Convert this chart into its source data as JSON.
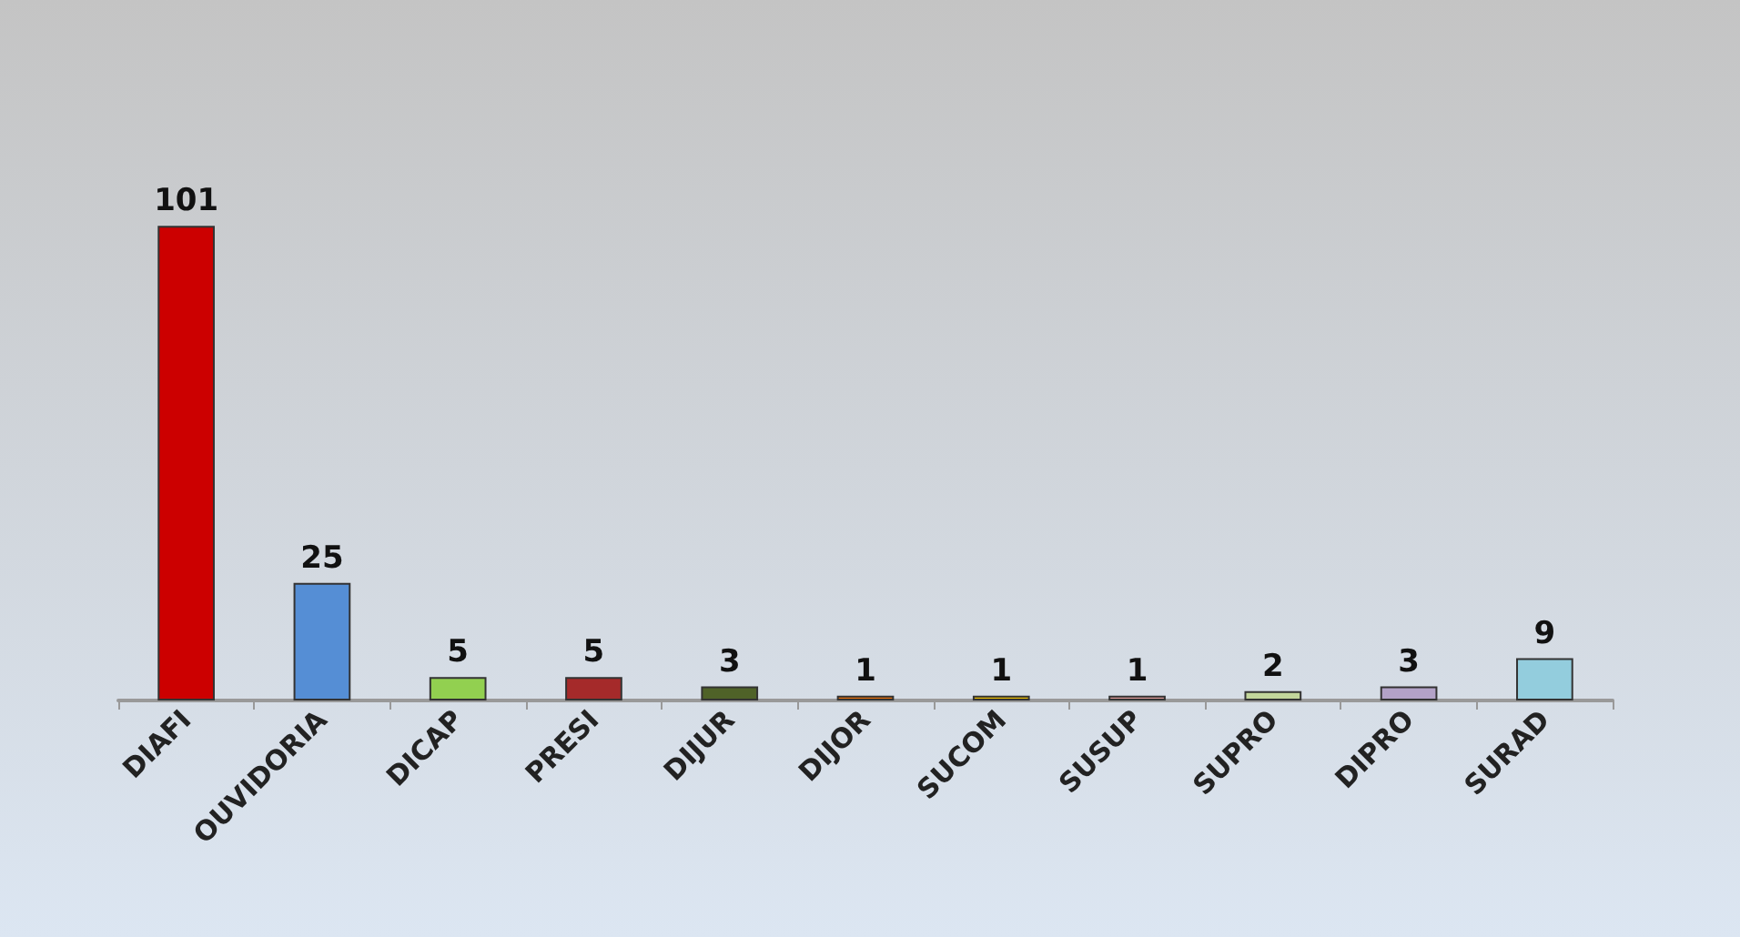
{
  "chart_data": {
    "type": "bar",
    "categories": [
      "DIAFI",
      "OUVIDORIA",
      "DICAP",
      "PRESI",
      "DIJUR",
      "DIJOR",
      "SUCOM",
      "SUSUP",
      "SUPRO",
      "DIPRO",
      "SURAD"
    ],
    "values": [
      101,
      25,
      5,
      5,
      3,
      1,
      1,
      1,
      2,
      3,
      9
    ],
    "colors": [
      "#cc0000",
      "#558ed5",
      "#92d050",
      "#a52a2a",
      "#4f6228",
      "#e36c09",
      "#e6b800",
      "#d99694",
      "#c3d69b",
      "#b3a2c7",
      "#93cddd"
    ],
    "data_labels": true
  }
}
